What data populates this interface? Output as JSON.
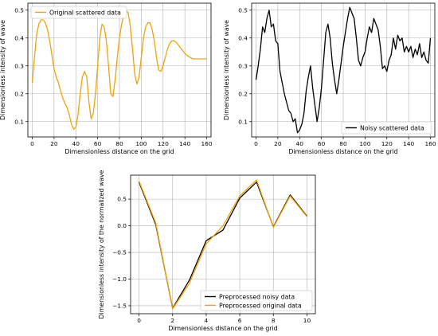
{
  "chart_data": [
    {
      "type": "line",
      "xlabel": "Dimensionless distance on the grid",
      "ylabel": "Dimensionless intensity of wave",
      "xlim": [
        -4,
        164
      ],
      "ylim": [
        0.045,
        0.525
      ],
      "xticks": [
        0,
        20,
        40,
        60,
        80,
        100,
        120,
        140,
        160
      ],
      "yticks": [
        0.1,
        0.2,
        0.3,
        0.4,
        0.5
      ],
      "grid": true,
      "legend": "top-left",
      "series": [
        {
          "name": "Original scattered data",
          "color": "#f0a30a",
          "x": [
            0,
            2,
            4,
            6,
            8,
            10,
            12,
            14,
            16,
            18,
            20,
            22,
            24,
            26,
            28,
            30,
            32,
            34,
            36,
            38,
            40,
            42,
            44,
            46,
            48,
            50,
            52,
            54,
            56,
            58,
            60,
            62,
            64,
            66,
            68,
            70,
            72,
            74,
            76,
            78,
            80,
            82,
            84,
            86,
            88,
            90,
            92,
            94,
            96,
            98,
            100,
            102,
            104,
            106,
            108,
            110,
            112,
            114,
            116,
            118,
            120,
            122,
            124,
            126,
            128,
            130,
            132,
            134,
            136,
            138,
            140,
            142,
            144,
            146,
            148,
            150,
            152,
            154,
            156,
            158,
            160
          ],
          "values": [
            0.24,
            0.33,
            0.41,
            0.45,
            0.465,
            0.465,
            0.455,
            0.43,
            0.39,
            0.34,
            0.29,
            0.26,
            0.24,
            0.21,
            0.185,
            0.165,
            0.15,
            0.125,
            0.09,
            0.073,
            0.08,
            0.125,
            0.2,
            0.26,
            0.28,
            0.26,
            0.17,
            0.11,
            0.13,
            0.2,
            0.3,
            0.4,
            0.45,
            0.44,
            0.39,
            0.3,
            0.2,
            0.19,
            0.25,
            0.33,
            0.4,
            0.45,
            0.485,
            0.5,
            0.49,
            0.44,
            0.36,
            0.27,
            0.235,
            0.26,
            0.33,
            0.4,
            0.44,
            0.455,
            0.455,
            0.43,
            0.39,
            0.33,
            0.285,
            0.28,
            0.3,
            0.33,
            0.36,
            0.38,
            0.39,
            0.39,
            0.385,
            0.375,
            0.365,
            0.355,
            0.345,
            0.338,
            0.332,
            0.328,
            0.325,
            0.325,
            0.325,
            0.325,
            0.325,
            0.325,
            0.325
          ]
        }
      ]
    },
    {
      "type": "line",
      "xlabel": "Dimensionless distance on the grid",
      "ylabel": "Dimensionless intensity of wave",
      "xlim": [
        -4,
        164
      ],
      "ylim": [
        0.045,
        0.525
      ],
      "xticks": [
        0,
        20,
        40,
        60,
        80,
        100,
        120,
        140,
        160
      ],
      "yticks": [
        0.1,
        0.2,
        0.3,
        0.4,
        0.5
      ],
      "grid": true,
      "legend": "bottom-right",
      "series": [
        {
          "name": "Noisy scattered data",
          "color": "#000000",
          "x": [
            0,
            2,
            4,
            6,
            8,
            10,
            12,
            14,
            16,
            18,
            20,
            22,
            24,
            26,
            28,
            30,
            32,
            34,
            36,
            38,
            40,
            42,
            44,
            46,
            48,
            50,
            52,
            54,
            56,
            58,
            60,
            62,
            64,
            66,
            68,
            70,
            72,
            74,
            76,
            78,
            80,
            82,
            84,
            86,
            88,
            90,
            92,
            94,
            96,
            98,
            100,
            102,
            104,
            106,
            108,
            110,
            112,
            114,
            116,
            118,
            120,
            122,
            124,
            126,
            128,
            130,
            132,
            134,
            136,
            138,
            140,
            142,
            144,
            146,
            148,
            150,
            152,
            154,
            156,
            158,
            160
          ],
          "values": [
            0.25,
            0.3,
            0.36,
            0.44,
            0.42,
            0.47,
            0.5,
            0.44,
            0.45,
            0.39,
            0.38,
            0.28,
            0.24,
            0.2,
            0.17,
            0.14,
            0.13,
            0.1,
            0.11,
            0.06,
            0.07,
            0.09,
            0.13,
            0.21,
            0.26,
            0.3,
            0.22,
            0.16,
            0.1,
            0.15,
            0.22,
            0.32,
            0.42,
            0.45,
            0.4,
            0.31,
            0.25,
            0.2,
            0.25,
            0.31,
            0.37,
            0.42,
            0.47,
            0.51,
            0.49,
            0.47,
            0.4,
            0.32,
            0.3,
            0.33,
            0.35,
            0.4,
            0.44,
            0.42,
            0.47,
            0.45,
            0.43,
            0.37,
            0.29,
            0.3,
            0.28,
            0.32,
            0.34,
            0.4,
            0.36,
            0.41,
            0.39,
            0.4,
            0.35,
            0.37,
            0.35,
            0.37,
            0.33,
            0.36,
            0.34,
            0.38,
            0.33,
            0.35,
            0.32,
            0.31,
            0.4
          ]
        }
      ]
    },
    {
      "type": "line",
      "xlabel": "Dimensionless distance on the grid",
      "ylabel": "Dimensionless intensity of the normalized wave",
      "xlim": [
        -0.5,
        10.5
      ],
      "ylim": [
        -1.65,
        0.95
      ],
      "xticks": [
        0,
        2,
        4,
        6,
        8,
        10
      ],
      "yticks": [
        -1.5,
        -1.0,
        -0.5,
        0.0,
        0.5
      ],
      "grid": true,
      "legend": "bottom-right",
      "series": [
        {
          "name": "Preprocessed noisy data",
          "color": "#000000",
          "x": [
            0,
            1,
            2,
            3,
            4,
            5,
            6,
            7,
            8,
            9,
            10
          ],
          "values": [
            0.82,
            0.02,
            -1.55,
            -1.02,
            -0.28,
            -0.08,
            0.52,
            0.82,
            -0.02,
            0.58,
            0.18
          ]
        },
        {
          "name": "Preprocessed original data",
          "color": "#f0a30a",
          "x": [
            0,
            1,
            2,
            3,
            4,
            5,
            6,
            7,
            8,
            9,
            10
          ],
          "values": [
            0.84,
            0.05,
            -1.56,
            -1.08,
            -0.34,
            0.0,
            0.56,
            0.86,
            -0.03,
            0.56,
            0.17
          ]
        }
      ]
    }
  ]
}
